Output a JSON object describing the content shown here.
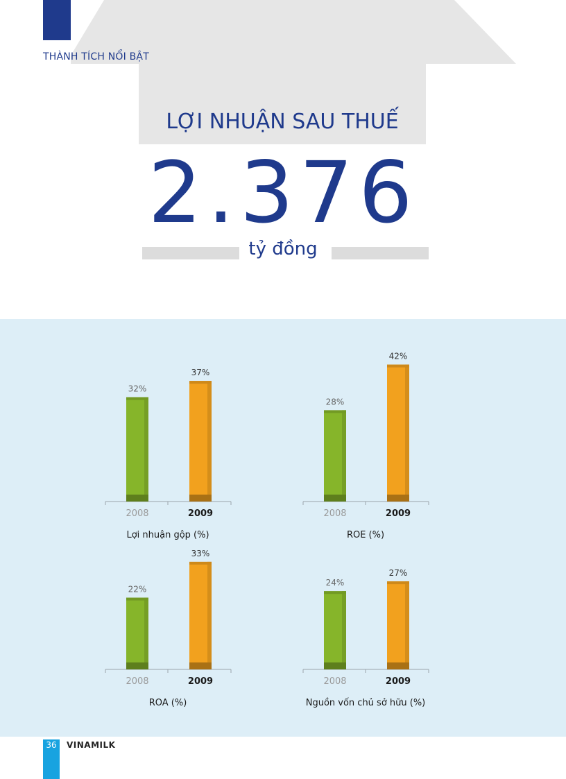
{
  "header": {
    "section_label": "THÀNH TÍCH NỔI BẬT"
  },
  "highlight": {
    "title": "LỢI NHUẬN SAU THUẾ",
    "value": "2.376",
    "unit": "tỷ đồng"
  },
  "colors": {
    "brand_blue": "#1f3a8c",
    "bar_2008": "#86b52a",
    "bar_2009": "#f2a11e",
    "panel_bg": "#ddeef7",
    "footer_blue": "#18a3e0"
  },
  "chart_data": [
    {
      "type": "bar",
      "title": "Lợi nhuận gộp (%)",
      "categories": [
        "2008",
        "2009"
      ],
      "values": [
        32,
        37
      ],
      "data_labels": [
        "32%",
        "37%"
      ],
      "ylim": [
        0,
        45
      ]
    },
    {
      "type": "bar",
      "title": "ROE (%)",
      "categories": [
        "2008",
        "2009"
      ],
      "values": [
        28,
        42
      ],
      "data_labels": [
        "28%",
        "42%"
      ],
      "ylim": [
        0,
        45
      ]
    },
    {
      "type": "bar",
      "title": "ROA (%)",
      "categories": [
        "2008",
        "2009"
      ],
      "values": [
        22,
        33
      ],
      "data_labels": [
        "22%",
        "33%"
      ],
      "ylim": [
        0,
        45
      ]
    },
    {
      "type": "bar",
      "title": "Nguồn vốn chủ sở hữu (%)",
      "categories": [
        "2008",
        "2009"
      ],
      "values": [
        24,
        27
      ],
      "data_labels": [
        "24%",
        "27%"
      ],
      "ylim": [
        0,
        45
      ]
    }
  ],
  "footer": {
    "page_number": "36",
    "brand": "VINAMILK"
  }
}
